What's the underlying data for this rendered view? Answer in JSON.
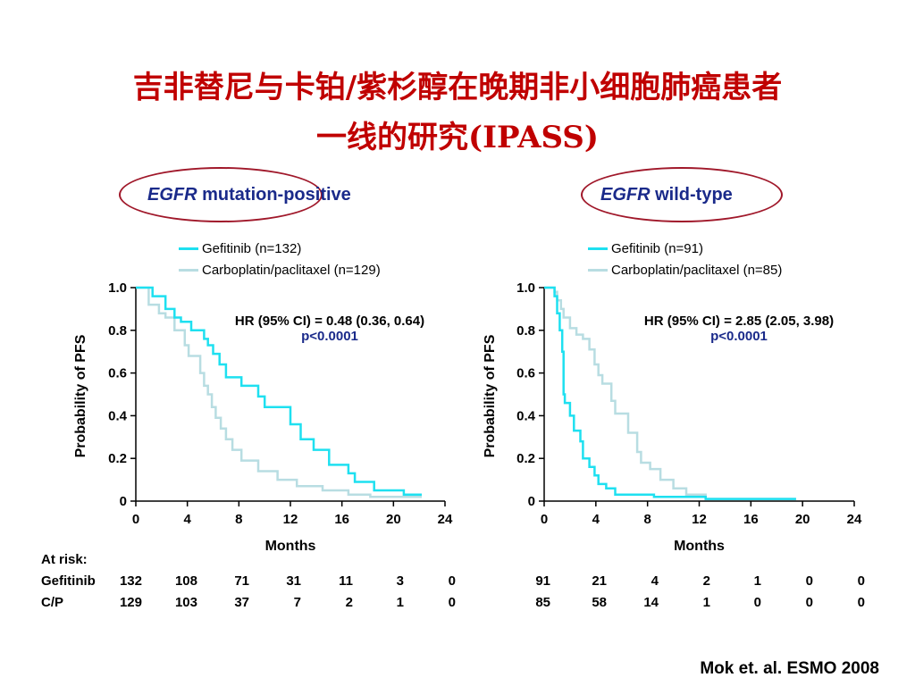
{
  "title_line1": "吉非替尼与卡铂/紫杉醇在晚期非小细胞肺癌患者",
  "title_line2": "一线的研究(IPASS)",
  "colors": {
    "gefitinib": "#1ee0f0",
    "cp": "#b8dde2",
    "title": "#c00000",
    "accent": "#1a2a8a",
    "oval": "#a0182a"
  },
  "panels": [
    {
      "title_italic": "EGFR",
      "title_rest": " mutation-positive",
      "legend": [
        "Gefitinib (n=132)",
        "Carboplatin/paclitaxel (n=129)"
      ],
      "hr": "HR (95% CI) = 0.48 (0.36, 0.64)",
      "p": "p<0.0001"
    },
    {
      "title_italic": "EGFR",
      "title_rest": " wild-type",
      "legend": [
        "Gefitinib (n=91)",
        "Carboplatin/paclitaxel (n=85)"
      ],
      "hr": "HR (95% CI) = 2.85 (2.05, 3.98)",
      "p": "p<0.0001"
    }
  ],
  "chart_data": [
    {
      "type": "line",
      "xlabel": "Months",
      "ylabel": "Probability of PFS",
      "xlim": [
        0,
        24
      ],
      "ylim": [
        0,
        1
      ],
      "xticks": [
        "0",
        "4",
        "8",
        "12",
        "16",
        "20",
        "24"
      ],
      "yticks": [
        "0",
        "0.2",
        "0.4",
        "0.6",
        "0.8",
        "1.0"
      ],
      "series": [
        {
          "name": "Gefitinib (n=132)",
          "color": "gefitinib",
          "x": [
            0,
            1.3,
            1.3,
            2.3,
            2.3,
            3.0,
            3.0,
            3.5,
            3.5,
            4.3,
            4.3,
            5.3,
            5.3,
            5.6,
            5.6,
            6.0,
            6.0,
            6.5,
            6.5,
            7.0,
            7.0,
            8.2,
            8.2,
            9.5,
            9.5,
            10.0,
            10.0,
            12.0,
            12.0,
            12.8,
            12.8,
            13.8,
            13.8,
            15.0,
            15.0,
            16.5,
            16.5,
            17.0,
            17.0,
            18.5,
            18.5,
            20.8,
            20.8,
            22.2
          ],
          "y": [
            1.0,
            1.0,
            0.96,
            0.96,
            0.9,
            0.9,
            0.86,
            0.86,
            0.84,
            0.84,
            0.8,
            0.8,
            0.76,
            0.76,
            0.73,
            0.73,
            0.69,
            0.69,
            0.64,
            0.64,
            0.58,
            0.58,
            0.54,
            0.54,
            0.49,
            0.49,
            0.44,
            0.44,
            0.36,
            0.36,
            0.29,
            0.29,
            0.24,
            0.24,
            0.17,
            0.17,
            0.13,
            0.13,
            0.09,
            0.09,
            0.05,
            0.05,
            0.03,
            0.03
          ]
        },
        {
          "name": "Carboplatin/paclitaxel (n=129)",
          "color": "cp",
          "x": [
            0,
            1.0,
            1.0,
            1.8,
            1.8,
            2.3,
            2.3,
            3.0,
            3.0,
            3.8,
            3.8,
            4.1,
            4.1,
            5.0,
            5.0,
            5.3,
            5.3,
            5.6,
            5.6,
            5.9,
            5.9,
            6.2,
            6.2,
            6.6,
            6.6,
            7.0,
            7.0,
            7.5,
            7.5,
            8.2,
            8.2,
            9.5,
            9.5,
            11.0,
            11.0,
            12.5,
            12.5,
            14.5,
            14.5,
            16.5,
            16.5,
            18.2,
            18.2,
            22.2
          ],
          "y": [
            1.0,
            1.0,
            0.92,
            0.92,
            0.88,
            0.88,
            0.86,
            0.86,
            0.8,
            0.8,
            0.73,
            0.73,
            0.68,
            0.68,
            0.6,
            0.6,
            0.54,
            0.54,
            0.5,
            0.5,
            0.44,
            0.44,
            0.39,
            0.39,
            0.34,
            0.34,
            0.29,
            0.29,
            0.24,
            0.24,
            0.19,
            0.19,
            0.14,
            0.14,
            0.1,
            0.1,
            0.07,
            0.07,
            0.05,
            0.05,
            0.03,
            0.03,
            0.02,
            0.02
          ]
        }
      ]
    },
    {
      "type": "line",
      "xlabel": "Months",
      "ylabel": "Probability of PFS",
      "xlim": [
        0,
        24
      ],
      "ylim": [
        0,
        1
      ],
      "xticks": [
        "0",
        "4",
        "8",
        "12",
        "16",
        "20",
        "24"
      ],
      "yticks": [
        "0",
        "0.2",
        "0.4",
        "0.6",
        "0.8",
        "1.0"
      ],
      "series": [
        {
          "name": "Gefitinib (n=91)",
          "color": "gefitinib",
          "x": [
            0,
            0.8,
            0.8,
            1.0,
            1.0,
            1.2,
            1.2,
            1.4,
            1.4,
            1.5,
            1.5,
            1.6,
            1.6,
            2.0,
            2.0,
            2.3,
            2.3,
            2.8,
            2.8,
            3.0,
            3.0,
            3.5,
            3.5,
            3.9,
            3.9,
            4.2,
            4.2,
            4.8,
            4.8,
            5.5,
            5.5,
            8.5,
            8.5,
            12.5,
            12.5,
            19.5
          ],
          "y": [
            1.0,
            1.0,
            0.96,
            0.96,
            0.88,
            0.88,
            0.8,
            0.8,
            0.7,
            0.7,
            0.5,
            0.5,
            0.46,
            0.46,
            0.4,
            0.4,
            0.33,
            0.33,
            0.28,
            0.28,
            0.2,
            0.2,
            0.16,
            0.16,
            0.12,
            0.12,
            0.08,
            0.08,
            0.06,
            0.06,
            0.03,
            0.03,
            0.02,
            0.02,
            0.01,
            0.01
          ]
        },
        {
          "name": "Carboplatin/paclitaxel (n=85)",
          "color": "cp",
          "x": [
            0,
            0.8,
            0.8,
            1.0,
            1.0,
            1.3,
            1.3,
            1.5,
            1.5,
            2.0,
            2.0,
            2.5,
            2.5,
            3.0,
            3.0,
            3.5,
            3.5,
            3.9,
            3.9,
            4.2,
            4.2,
            4.5,
            4.5,
            5.2,
            5.2,
            5.5,
            5.5,
            6.5,
            6.5,
            7.2,
            7.2,
            7.5,
            7.5,
            8.2,
            8.2,
            9.0,
            9.0,
            10.0,
            10.0,
            11.0,
            11.0,
            12.5,
            12.5,
            19.5
          ],
          "y": [
            1.0,
            1.0,
            0.98,
            0.98,
            0.94,
            0.94,
            0.9,
            0.9,
            0.86,
            0.86,
            0.81,
            0.81,
            0.78,
            0.78,
            0.76,
            0.76,
            0.71,
            0.71,
            0.64,
            0.64,
            0.59,
            0.59,
            0.55,
            0.55,
            0.47,
            0.47,
            0.41,
            0.41,
            0.32,
            0.32,
            0.23,
            0.23,
            0.18,
            0.18,
            0.15,
            0.15,
            0.1,
            0.1,
            0.06,
            0.06,
            0.03,
            0.03,
            0.01,
            0.01
          ]
        }
      ]
    }
  ],
  "at_risk": {
    "label": "At risk:",
    "rows": [
      {
        "name": "Gefitinib",
        "left": [
          "132",
          "108",
          "71",
          "31",
          "11",
          "3",
          "0"
        ],
        "right": [
          "91",
          "21",
          "4",
          "2",
          "1",
          "0",
          "0"
        ]
      },
      {
        "name": "C/P",
        "left": [
          "129",
          "103",
          "37",
          "7",
          "2",
          "1",
          "0"
        ],
        "right": [
          "85",
          "58",
          "14",
          "1",
          "0",
          "0",
          "0"
        ]
      }
    ]
  },
  "citation": "Mok et. al. ESMO 2008"
}
